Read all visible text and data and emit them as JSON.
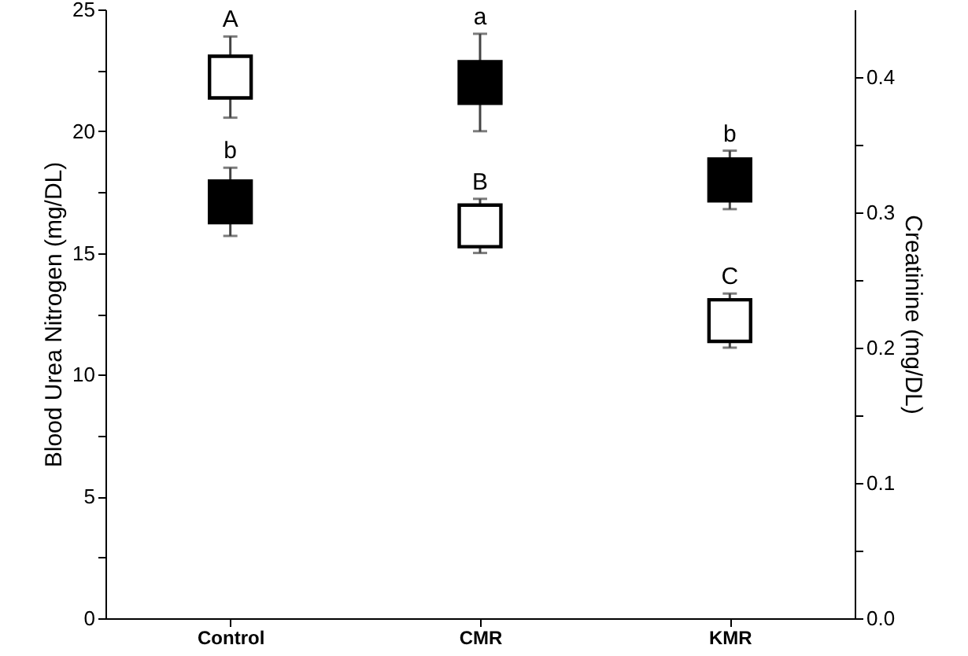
{
  "chart_data": {
    "type": "scatter",
    "ylabel": "Blood Urea Nitrogen (mg/DL)",
    "y2label": "Creatinine (mg/DL)",
    "categories": [
      "Control",
      "CMR",
      "KMR"
    ],
    "series": [
      {
        "color": "#000000",
        "axis": "y",
        "values": [
          17.1,
          22.0,
          18.0
        ],
        "errors": [
          1.4,
          2.0,
          1.2
        ],
        "value_labels": [
          "b",
          "a",
          "b"
        ]
      },
      {
        "color": "#ffffff",
        "axis": "y2",
        "values": [
          0.4,
          0.29,
          0.22
        ],
        "errors": [
          0.03,
          0.02,
          0.02
        ],
        "value_labels": [
          "A",
          "B",
          "C"
        ]
      }
    ],
    "ylim": [
      0,
      25
    ],
    "yticks": [
      0,
      {
        "value": 2.5,
        "label": null
      },
      5,
      {
        "value": 7.5,
        "label": null
      },
      10,
      {
        "value": 12.5,
        "label": null
      },
      15,
      {
        "value": 17.5,
        "label": null
      },
      20,
      {
        "value": 22.5,
        "label": null
      },
      25
    ],
    "y2lim": [
      0,
      0.45
    ],
    "y2ticks": [
      {
        "value": 0,
        "label": "0.0"
      },
      {
        "value": 0.05,
        "label": null
      },
      0.1,
      {
        "value": 0.15,
        "label": null
      },
      0.2,
      {
        "value": 0.25,
        "label": null
      },
      0.3,
      {
        "value": 0.35,
        "label": null
      },
      0.4
    ],
    "marker": "square",
    "grid": false
  }
}
